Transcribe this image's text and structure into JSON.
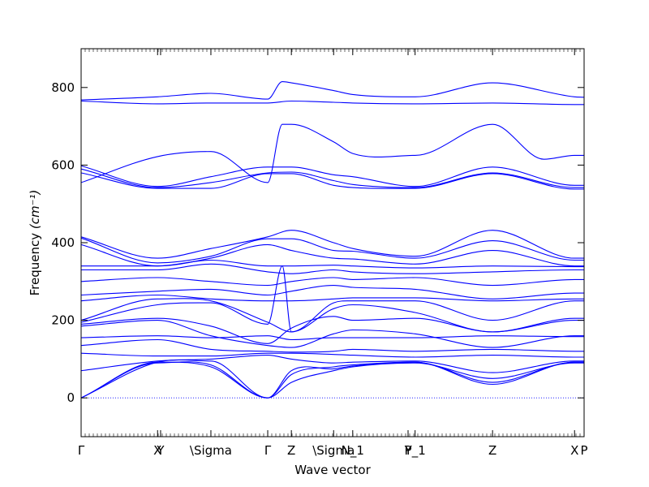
{
  "chart_data": {
    "type": "line",
    "title": "",
    "xlabel": "Wave vector",
    "ylabel": "Frequency ",
    "ylabel_unit": "(cm⁻¹)",
    "ylim": [
      -100,
      900
    ],
    "xlim": [
      0,
      1
    ],
    "line_color": "#0000ff",
    "zero_line": {
      "y": 0,
      "style": "dotted",
      "color": "#0000ff"
    },
    "y_ticks": [
      0,
      200,
      400,
      600,
      800
    ],
    "x_ticks": [
      {
        "label": "Γ",
        "pos": 0.0
      },
      {
        "label": "X",
        "pos": 0.152
      },
      {
        "label": "Y",
        "pos": 0.158
      },
      {
        "label": "\\Sigma",
        "pos": 0.258
      },
      {
        "label": "Γ",
        "pos": 0.371
      },
      {
        "label": "Z",
        "pos": 0.418
      },
      {
        "label": "\\Sigma",
        "pos": 0.502
      },
      {
        "label": "N_1",
        "pos": 0.54
      },
      {
        "label": "P",
        "pos": 0.65
      },
      {
        "label": "Y_1",
        "pos": 0.664
      },
      {
        "label": "Z",
        "pos": 0.818
      },
      {
        "label": "X",
        "pos": 0.981
      },
      {
        "label": "P",
        "pos": 1.0
      }
    ],
    "bands": [
      {
        "x": [
          0,
          0.152,
          0.258,
          0.371,
          0.4,
          0.418,
          0.502,
          0.54,
          0.664,
          0.818,
          0.981,
          1.0
        ],
        "y": [
          768,
          776,
          785,
          770,
          815,
          812,
          792,
          782,
          776,
          812,
          776,
          775
        ]
      },
      {
        "x": [
          0,
          0.152,
          0.258,
          0.371,
          0.418,
          0.502,
          0.54,
          0.664,
          0.818,
          0.981,
          1.0
        ],
        "y": [
          765,
          758,
          760,
          760,
          765,
          762,
          760,
          758,
          760,
          756,
          756
        ]
      },
      {
        "x": [
          0,
          0.152,
          0.258,
          0.371,
          0.4,
          0.418,
          0.502,
          0.54,
          0.664,
          0.818,
          0.92,
          0.981,
          1.0
        ],
        "y": [
          555,
          622,
          635,
          555,
          705,
          705,
          660,
          630,
          625,
          705,
          615,
          625,
          625
        ]
      },
      {
        "x": [
          0,
          0.152,
          0.258,
          0.371,
          0.418,
          0.502,
          0.54,
          0.664,
          0.818,
          0.981,
          1.0
        ],
        "y": [
          598,
          545,
          570,
          595,
          595,
          575,
          570,
          545,
          595,
          548,
          548
        ]
      },
      {
        "x": [
          0,
          0.152,
          0.258,
          0.371,
          0.418,
          0.502,
          0.54,
          0.664,
          0.818,
          0.981,
          1.0
        ],
        "y": [
          590,
          542,
          555,
          580,
          582,
          560,
          550,
          542,
          580,
          542,
          542
        ]
      },
      {
        "x": [
          0,
          0.152,
          0.258,
          0.371,
          0.418,
          0.502,
          0.54,
          0.664,
          0.818,
          0.981,
          1.0
        ],
        "y": [
          580,
          540,
          540,
          578,
          578,
          548,
          542,
          540,
          578,
          538,
          538
        ]
      },
      {
        "x": [
          0,
          0.152,
          0.258,
          0.371,
          0.418,
          0.502,
          0.54,
          0.664,
          0.818,
          0.981,
          1.0
        ],
        "y": [
          415,
          360,
          385,
          415,
          432,
          400,
          385,
          365,
          432,
          360,
          360
        ]
      },
      {
        "x": [
          0,
          0.152,
          0.258,
          0.371,
          0.418,
          0.502,
          0.54,
          0.664,
          0.818,
          0.981,
          1.0
        ],
        "y": [
          412,
          348,
          365,
          410,
          410,
          380,
          378,
          360,
          405,
          355,
          355
        ]
      },
      {
        "x": [
          0,
          0.152,
          0.258,
          0.371,
          0.418,
          0.502,
          0.54,
          0.664,
          0.818,
          0.981,
          1.0
        ],
        "y": [
          395,
          340,
          360,
          395,
          380,
          360,
          358,
          345,
          380,
          340,
          340
        ]
      },
      {
        "x": [
          0,
          0.152,
          0.258,
          0.371,
          0.418,
          0.502,
          0.54,
          0.664,
          0.818,
          0.981,
          1.0
        ],
        "y": [
          340,
          340,
          355,
          340,
          340,
          342,
          340,
          335,
          340,
          338,
          338
        ]
      },
      {
        "x": [
          0,
          0.152,
          0.258,
          0.371,
          0.418,
          0.502,
          0.54,
          0.664,
          0.818,
          0.981,
          1.0
        ],
        "y": [
          330,
          330,
          345,
          325,
          320,
          330,
          325,
          320,
          325,
          330,
          330
        ]
      },
      {
        "x": [
          0,
          0.152,
          0.258,
          0.371,
          0.418,
          0.502,
          0.54,
          0.664,
          0.818,
          0.981,
          1.0
        ],
        "y": [
          300,
          310,
          300,
          290,
          300,
          310,
          305,
          310,
          290,
          305,
          305
        ]
      },
      {
        "x": [
          0,
          0.152,
          0.258,
          0.371,
          0.418,
          0.502,
          0.54,
          0.664,
          0.818,
          0.981,
          1.0
        ],
        "y": [
          265,
          275,
          280,
          265,
          275,
          290,
          285,
          280,
          255,
          270,
          270
        ]
      },
      {
        "x": [
          0,
          0.152,
          0.258,
          0.371,
          0.418,
          0.502,
          0.54,
          0.664,
          0.818,
          0.981,
          1.0
        ],
        "y": [
          250,
          265,
          255,
          250,
          250,
          255,
          258,
          258,
          250,
          255,
          255
        ]
      },
      {
        "x": [
          0,
          0.152,
          0.258,
          0.371,
          0.418,
          0.502,
          0.54,
          0.664,
          0.818,
          0.981,
          1.0
        ],
        "y": [
          200,
          255,
          250,
          195,
          170,
          245,
          250,
          250,
          200,
          250,
          250
        ]
      },
      {
        "x": [
          0,
          0.152,
          0.258,
          0.371,
          0.4,
          0.418,
          0.502,
          0.54,
          0.664,
          0.818,
          0.981,
          1.0
        ],
        "y": [
          195,
          240,
          245,
          190,
          340,
          170,
          230,
          240,
          220,
          170,
          205,
          205
        ]
      },
      {
        "x": [
          0,
          0.152,
          0.258,
          0.371,
          0.418,
          0.502,
          0.54,
          0.664,
          0.818,
          0.981,
          1.0
        ],
        "y": [
          190,
          205,
          185,
          140,
          180,
          210,
          200,
          205,
          170,
          200,
          200
        ]
      },
      {
        "x": [
          0,
          0.152,
          0.258,
          0.371,
          0.418,
          0.502,
          0.54,
          0.664,
          0.818,
          0.981,
          1.0
        ],
        "y": [
          185,
          200,
          160,
          135,
          130,
          165,
          175,
          165,
          130,
          160,
          160
        ]
      },
      {
        "x": [
          0,
          0.152,
          0.258,
          0.371,
          0.418,
          0.502,
          0.54,
          0.664,
          0.818,
          0.981,
          1.0
        ],
        "y": [
          155,
          160,
          155,
          160,
          150,
          155,
          155,
          155,
          160,
          158,
          158
        ]
      },
      {
        "x": [
          0,
          0.152,
          0.258,
          0.371,
          0.418,
          0.502,
          0.54,
          0.664,
          0.818,
          0.981,
          1.0
        ],
        "y": [
          135,
          150,
          125,
          120,
          118,
          120,
          125,
          120,
          125,
          120,
          120
        ]
      },
      {
        "x": [
          0,
          0.152,
          0.258,
          0.371,
          0.418,
          0.502,
          0.54,
          0.664,
          0.818,
          0.981,
          1.0
        ],
        "y": [
          115,
          108,
          108,
          115,
          115,
          112,
          110,
          105,
          110,
          105,
          105
        ]
      },
      {
        "x": [
          0,
          0.152,
          0.258,
          0.371,
          0.418,
          0.502,
          0.54,
          0.664,
          0.818,
          0.981,
          1.0
        ],
        "y": [
          70,
          95,
          100,
          110,
          100,
          90,
          92,
          95,
          65,
          95,
          95
        ]
      },
      {
        "x": [
          0,
          0.152,
          0.258,
          0.371,
          0.418,
          0.502,
          0.54,
          0.664,
          0.818,
          0.981,
          1.0
        ],
        "y": [
          0,
          92,
          80,
          0,
          60,
          80,
          85,
          92,
          40,
          92,
          92
        ]
      },
      {
        "x": [
          0,
          0.152,
          0.258,
          0.371,
          0.418,
          0.502,
          0.54,
          0.664,
          0.818,
          0.981,
          1.0
        ],
        "y": [
          0,
          90,
          85,
          0,
          40,
          70,
          80,
          90,
          50,
          90,
          90
        ]
      },
      {
        "x": [
          0,
          0.152,
          0.258,
          0.371,
          0.418,
          0.502,
          0.54,
          0.664,
          0.818,
          0.981,
          1.0
        ],
        "y": [
          0,
          92,
          95,
          0,
          70,
          75,
          82,
          92,
          35,
          92,
          92
        ]
      }
    ]
  }
}
